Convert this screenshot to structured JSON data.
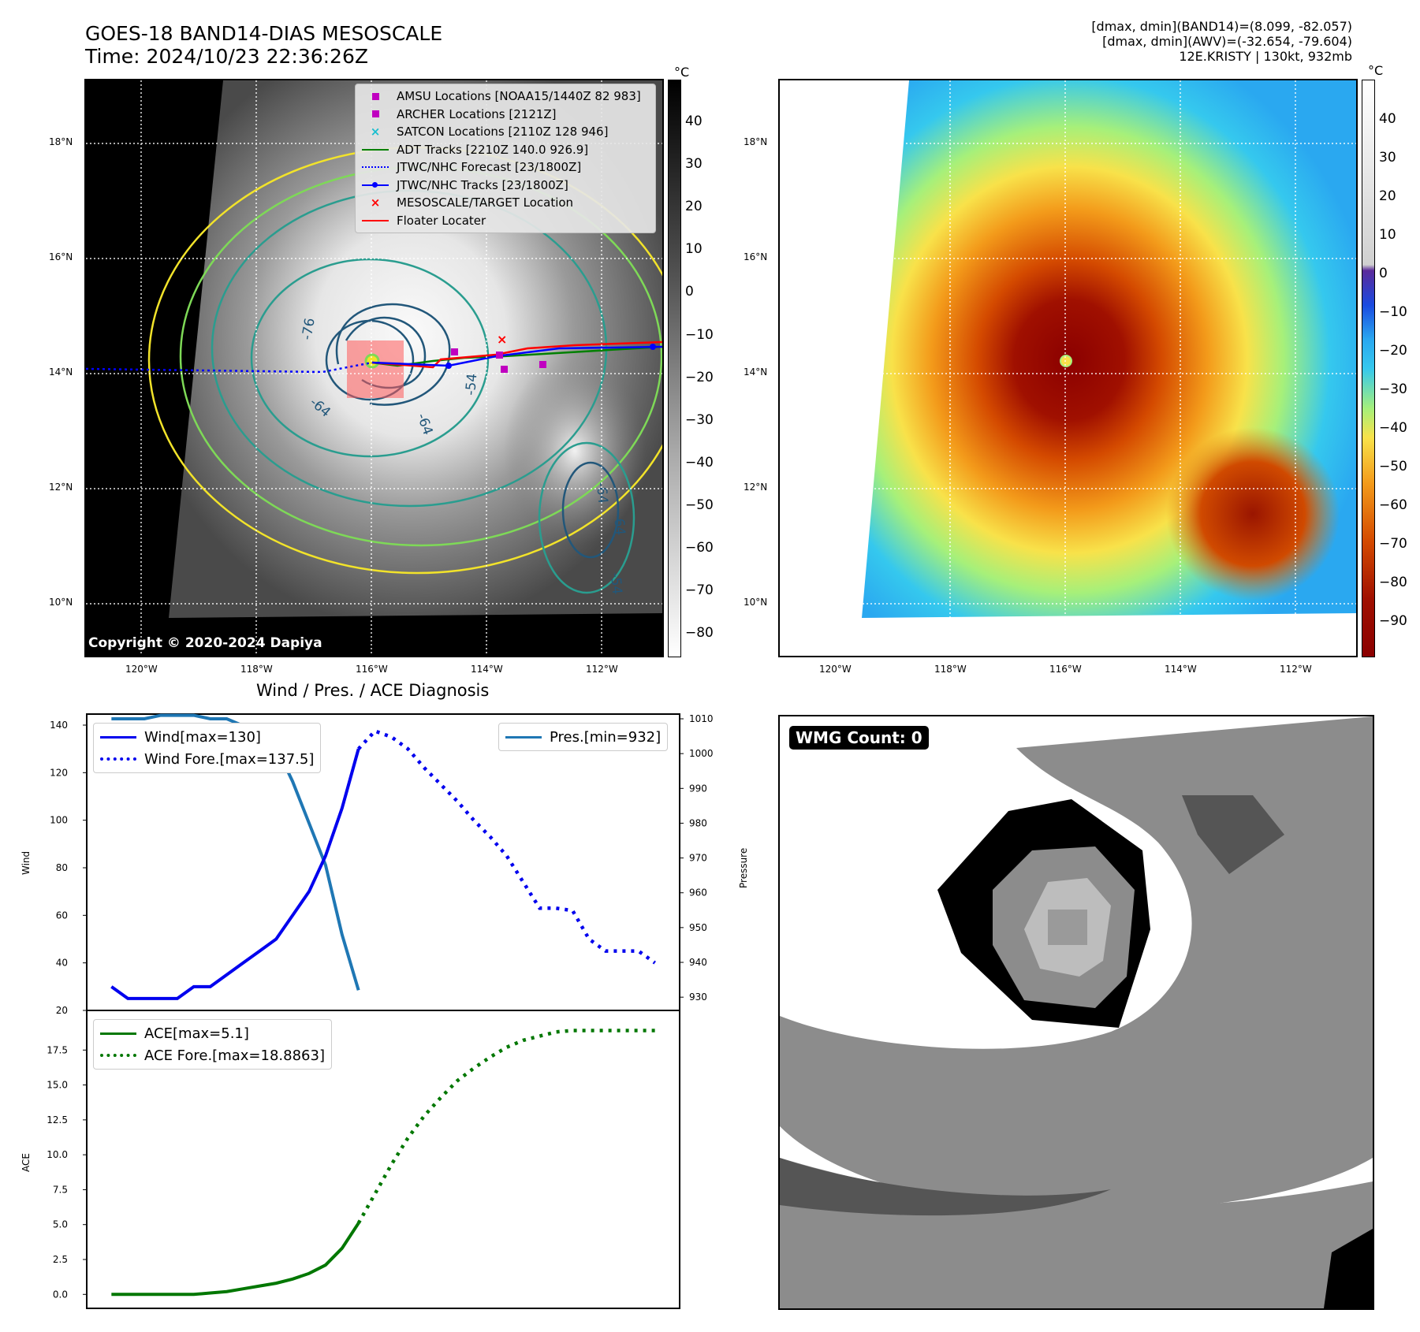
{
  "header": {
    "title_line1": "GOES-18 BAND14-DIAS MESOSCALE",
    "title_line2": "Time: 2024/10/23 22:36:26Z",
    "info_line1": "[dmax, dmin](BAND14)=(8.099, -82.057)",
    "info_line2": "[dmax, dmin](AWV)=(-32.654, -79.604)",
    "info_line3": "12E.KRISTY | 130kt, 932mb"
  },
  "map": {
    "lat_labels": [
      "18°N",
      "16°N",
      "14°N",
      "12°N",
      "10°N"
    ],
    "lon_labels": [
      "120°W",
      "118°W",
      "116°W",
      "114°W",
      "112°W"
    ],
    "copyright": "Copyright © 2020-2024 Dapiya",
    "contour_labels": [
      "-76",
      "-64",
      "-64",
      "-54",
      "-64",
      "-64",
      "-54"
    ],
    "legend": [
      {
        "label": "AMSU Locations [NOAA15/1440Z 82 983]",
        "icon": "square-marker",
        "color": "#c000c0"
      },
      {
        "label": "ARCHER Locations [2121Z]",
        "icon": "square-marker",
        "color": "#c000c0"
      },
      {
        "label": "SATCON Locations [2110Z 128 946]",
        "icon": "x-marker",
        "color": "#17becf"
      },
      {
        "label": "ADT Tracks [2210Z 140.0 926.9]",
        "icon": "solid-line",
        "color": "#008000"
      },
      {
        "label": "JTWC/NHC Forecast [23/1800Z]",
        "icon": "dotted-line",
        "color": "#0000ff"
      },
      {
        "label": "JTWC/NHC Tracks [23/1800Z]",
        "icon": "line-dot",
        "color": "#0000ff"
      },
      {
        "label": "MESOSCALE/TARGET Location",
        "icon": "x-marker",
        "color": "#ff0000"
      },
      {
        "label": "Floater Locater",
        "icon": "solid-line",
        "color": "#ff0000"
      }
    ]
  },
  "colorbar_gray": {
    "unit": "°C",
    "ticks": [
      "40",
      "30",
      "20",
      "10",
      "0",
      "−10",
      "−20",
      "−30",
      "−40",
      "−50",
      "−60",
      "−70",
      "−80"
    ]
  },
  "colorbar_color": {
    "unit": "°C",
    "ticks": [
      "40",
      "30",
      "20",
      "10",
      "0",
      "−10",
      "−20",
      "−30",
      "−40",
      "−50",
      "−60",
      "−70",
      "−80",
      "−90"
    ]
  },
  "diagnosis": {
    "title": "Wind / Pres. / ACE Diagnosis",
    "wmg_label": "WMG Count: 0"
  },
  "chart_data": [
    {
      "type": "line",
      "title": "Wind / Pres. / ACE Diagnosis",
      "ylabel": "Wind",
      "ylim": [
        20,
        140
      ],
      "yticks": [
        "140",
        "120",
        "100",
        "80",
        "60",
        "40",
        "20"
      ],
      "y2label": "Pressure",
      "y2lim": [
        928,
        1010
      ],
      "y2ticks": [
        "1010",
        "1000",
        "990",
        "980",
        "970",
        "960",
        "950",
        "940",
        "930"
      ],
      "x": [
        0,
        1,
        2,
        3,
        4,
        5,
        6,
        7,
        8,
        9,
        10,
        11,
        12,
        13,
        14,
        15,
        16,
        17,
        18,
        19,
        20,
        21,
        22,
        23,
        24,
        25,
        26,
        27,
        28,
        29,
        30,
        31,
        32,
        33
      ],
      "series": [
        {
          "name": "Wind[max=130]",
          "style": "solid",
          "color": "#0000ee",
          "x": [
            0,
            1,
            2,
            3,
            4,
            5,
            6,
            7,
            8,
            9,
            10,
            11,
            12,
            13,
            14,
            15
          ],
          "values": [
            30,
            25,
            25,
            25,
            25,
            30,
            30,
            35,
            40,
            45,
            50,
            60,
            70,
            85,
            105,
            130
          ]
        },
        {
          "name": "Wind Fore.[max=137.5]",
          "style": "dotted",
          "color": "#0000ee",
          "x": [
            15,
            16,
            17,
            18,
            19,
            20,
            21,
            22,
            23,
            24,
            25,
            26,
            27,
            28,
            29,
            30,
            31,
            32,
            33
          ],
          "values": [
            130,
            137.5,
            135,
            130,
            122,
            115,
            108,
            100,
            93,
            85,
            74,
            63,
            63,
            62,
            50,
            45,
            45,
            45,
            40
          ]
        },
        {
          "name": "Pres.[min=932]",
          "style": "solid",
          "color": "#1f77b4",
          "axis": "right",
          "x": [
            0,
            1,
            2,
            3,
            4,
            5,
            6,
            7,
            8,
            9,
            10,
            11,
            12,
            13,
            14,
            15
          ],
          "values": [
            1010,
            1010,
            1010,
            1011,
            1011,
            1011,
            1010,
            1010,
            1008,
            1006,
            1002,
            992,
            980,
            968,
            948,
            932
          ]
        }
      ]
    },
    {
      "type": "line",
      "ylabel": "ACE",
      "ylim": [
        -1,
        20
      ],
      "yticks": [
        "17.5",
        "15.0",
        "12.5",
        "10.0",
        "7.5",
        "5.0",
        "2.5",
        "0.0"
      ],
      "series": [
        {
          "name": "ACE[max=5.1]",
          "style": "solid",
          "color": "#007700",
          "x": [
            0,
            1,
            2,
            3,
            4,
            5,
            6,
            7,
            8,
            9,
            10,
            11,
            12,
            13,
            14,
            15
          ],
          "values": [
            0,
            0,
            0,
            0,
            0,
            0,
            0.1,
            0.2,
            0.4,
            0.6,
            0.8,
            1.1,
            1.5,
            2.1,
            3.3,
            5.1
          ]
        },
        {
          "name": "ACE Fore.[max=18.8863]",
          "style": "dotted",
          "color": "#007700",
          "x": [
            15,
            16,
            17,
            18,
            19,
            20,
            21,
            22,
            23,
            24,
            25,
            26,
            27,
            28,
            29,
            30,
            31,
            32,
            33
          ],
          "values": [
            5.1,
            7.2,
            9.3,
            11.2,
            12.8,
            14.1,
            15.3,
            16.2,
            17.0,
            17.7,
            18.2,
            18.5,
            18.8,
            18.9,
            18.9,
            18.9,
            18.9,
            18.9,
            18.9
          ]
        }
      ]
    }
  ]
}
